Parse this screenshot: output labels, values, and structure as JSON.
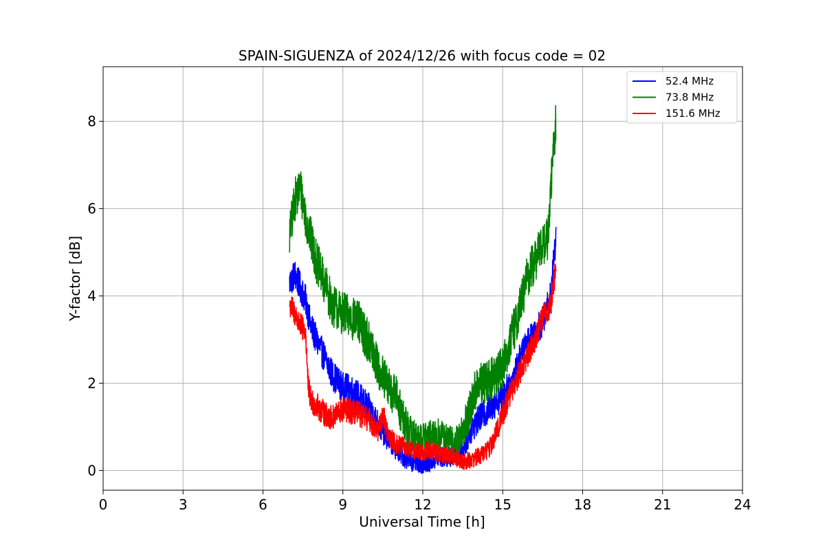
{
  "chart_data": {
    "type": "line",
    "title": "SPAIN-SIGUENZA of 2024/12/26 with focus code = 02",
    "xlabel": "Universal Time [h]",
    "ylabel": "Y-factor [dB]",
    "xlim": [
      0,
      24
    ],
    "ylim": [
      -0.45,
      9.25
    ],
    "xticks": [
      0,
      3,
      6,
      9,
      12,
      15,
      18,
      21,
      24
    ],
    "yticks": [
      0,
      2,
      4,
      6,
      8
    ],
    "xtick_labels": [
      "0",
      "3",
      "6",
      "9",
      "12",
      "15",
      "18",
      "21",
      "24"
    ],
    "ytick_labels": [
      "0",
      "2",
      "4",
      "6",
      "8"
    ],
    "grid": true,
    "legend_position": "top-right",
    "series": [
      {
        "name": " 52.4 MHz",
        "color": "#0000ff",
        "noise": 0.35,
        "x": [
          7.0,
          7.2,
          7.4,
          7.6,
          7.8,
          8.0,
          8.3,
          8.6,
          9.0,
          9.3,
          9.6,
          10.0,
          10.3,
          10.6,
          11.0,
          11.3,
          11.6,
          12.0,
          12.3,
          12.6,
          12.9,
          13.2,
          13.5,
          13.8,
          14.0,
          14.3,
          14.6,
          15.0,
          15.3,
          15.6,
          15.9,
          16.2,
          16.5,
          16.8,
          17.0
        ],
        "y": [
          4.3,
          4.5,
          4.2,
          3.9,
          3.3,
          3.0,
          2.6,
          2.2,
          1.9,
          1.85,
          1.7,
          1.4,
          1.1,
          0.8,
          0.5,
          0.3,
          0.2,
          0.15,
          0.2,
          0.3,
          0.3,
          0.35,
          0.5,
          0.9,
          1.1,
          1.3,
          1.5,
          1.7,
          2.0,
          2.5,
          2.9,
          3.2,
          3.4,
          4.0,
          5.4
        ]
      },
      {
        "name": " 73.8 MHz",
        "color": "#008000",
        "noise": 0.5,
        "x": [
          7.0,
          7.2,
          7.4,
          7.6,
          7.8,
          8.0,
          8.3,
          8.6,
          9.0,
          9.3,
          9.6,
          10.0,
          10.3,
          10.6,
          11.0,
          11.3,
          11.6,
          12.0,
          12.3,
          12.6,
          12.9,
          13.2,
          13.5,
          13.8,
          14.0,
          14.3,
          14.6,
          15.0,
          15.3,
          15.6,
          15.9,
          16.2,
          16.5,
          16.7,
          16.85,
          17.0
        ],
        "y": [
          5.4,
          6.2,
          6.5,
          5.8,
          5.3,
          4.8,
          4.3,
          3.8,
          3.6,
          3.5,
          3.4,
          2.9,
          2.4,
          2.0,
          1.7,
          1.1,
          0.8,
          0.7,
          0.75,
          0.8,
          0.7,
          0.6,
          0.9,
          1.4,
          1.9,
          2.0,
          2.1,
          2.4,
          3.0,
          3.6,
          4.4,
          4.8,
          5.2,
          5.3,
          6.9,
          8.0
        ]
      },
      {
        "name": " 151.6 MHz",
        "color": "#ff0000",
        "noise": 0.3,
        "x": [
          7.0,
          7.2,
          7.4,
          7.6,
          7.7,
          7.8,
          8.0,
          8.3,
          8.6,
          9.0,
          9.3,
          9.6,
          10.0,
          10.3,
          10.5,
          10.7,
          11.0,
          11.3,
          11.6,
          12.0,
          12.3,
          12.6,
          12.9,
          13.2,
          13.5,
          13.8,
          14.0,
          14.3,
          14.6,
          15.0,
          15.3,
          15.6,
          15.9,
          16.2,
          16.5,
          16.8,
          17.0
        ],
        "y": [
          3.8,
          3.6,
          3.3,
          3.2,
          1.9,
          1.6,
          1.5,
          1.3,
          1.2,
          1.4,
          1.35,
          1.3,
          1.15,
          0.9,
          1.3,
          0.8,
          0.6,
          0.55,
          0.45,
          0.45,
          0.45,
          0.4,
          0.35,
          0.3,
          0.2,
          0.25,
          0.3,
          0.4,
          0.6,
          1.3,
          1.8,
          2.2,
          2.6,
          3.0,
          3.5,
          3.8,
          4.6
        ]
      }
    ]
  }
}
